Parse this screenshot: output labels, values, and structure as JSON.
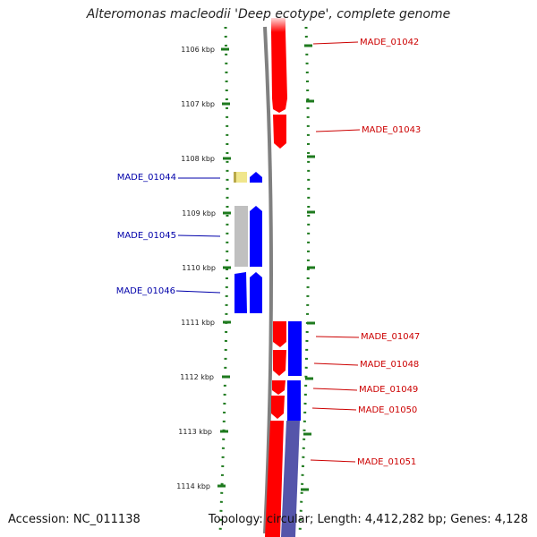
{
  "title": "Alteromonas macleodii 'Deep ecotype', complete genome",
  "footer": {
    "accession": "Accession: NC_011138",
    "topology": "Topology: circular",
    "length": "Length: 4,412,282 bp",
    "genes": "Genes: 4,128",
    "separator": "; "
  },
  "colors": {
    "forward_cds": "#ff0000",
    "reverse_cds": "#0000ff",
    "rna": "#f0e68c",
    "unlabeled": "#c0c0c0",
    "backbone": "#808080",
    "tick": "#1e7a1e",
    "right_label": "#cc0000",
    "left_label": "#0000aa"
  },
  "ruler": {
    "unit": "kbp",
    "labels": [
      "1106 kbp",
      "1107 kbp",
      "1108 kbp",
      "1109 kbp",
      "1110 kbp",
      "1111 kbp",
      "1112 kbp",
      "1113 kbp",
      "1114 kbp"
    ]
  },
  "genes": [
    {
      "label": "MADE_01042",
      "strand": "forward",
      "start_kbp": 1105.7,
      "end_kbp": 1106.95
    },
    {
      "label": "MADE_01043",
      "strand": "forward",
      "start_kbp": 1107.1,
      "end_kbp": 1107.72
    },
    {
      "label": "MADE_01044",
      "strand": "reverse",
      "start_kbp": 1108.25,
      "end_kbp": 1108.45
    },
    {
      "label": "MADE_01045",
      "strand": "reverse",
      "start_kbp": 1109.03,
      "end_kbp": 1110.1
    },
    {
      "label": "MADE_01046",
      "strand": "reverse",
      "start_kbp": 1110.1,
      "end_kbp": 1110.8
    },
    {
      "label": "MADE_01047",
      "strand": "forward",
      "start_kbp": 1111.0,
      "end_kbp": 1111.5
    },
    {
      "label": "MADE_01048",
      "strand": "forward",
      "start_kbp": 1111.5,
      "end_kbp": 1112.0
    },
    {
      "label": "MADE_01049",
      "strand": "forward",
      "start_kbp": 1112.05,
      "end_kbp": 1112.3
    },
    {
      "label": "MADE_01050",
      "strand": "forward",
      "start_kbp": 1112.3,
      "end_kbp": 1112.8
    },
    {
      "label": "MADE_01051",
      "strand": "forward",
      "start_kbp": 1112.8,
      "end_kbp": 1114.5
    }
  ]
}
